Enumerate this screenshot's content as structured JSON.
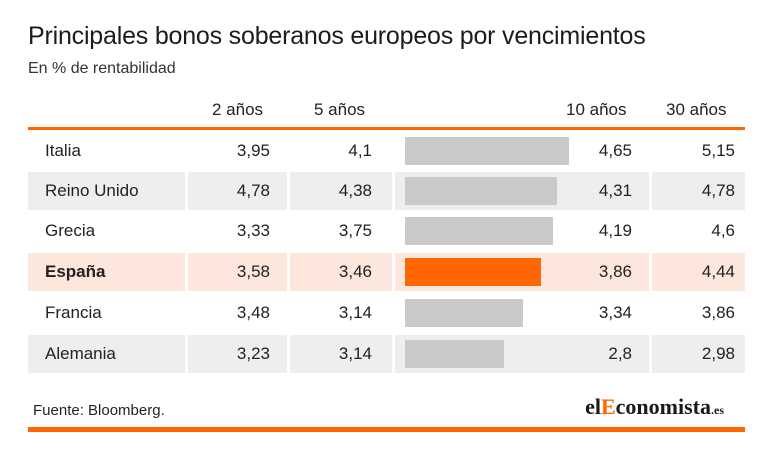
{
  "title": "Principales bonos soberanos europeos por vencimientos",
  "subtitle": "En % de rentabilidad",
  "source": "Fuente: Bloomberg.",
  "logo": {
    "part1": "el",
    "part2": "E",
    "part3": "conomista",
    "part4": ".es"
  },
  "colors": {
    "accent": "#ff6600",
    "bar": "#c9c9c9",
    "highlight_row": "#fde6dc",
    "cell": "#eeeeee"
  },
  "chart_data": {
    "type": "table",
    "columns": [
      "2 años",
      "5 años",
      "10 años",
      "30 años"
    ],
    "bar_column": "10 años",
    "highlight": "España",
    "rows": [
      {
        "country": "Italia",
        "y2": "3,95",
        "y5": "4,1",
        "y10": "4,65",
        "y30": "5,15",
        "v10": 4.65
      },
      {
        "country": "Reino Unido",
        "y2": "4,78",
        "y5": "4,38",
        "y10": "4,31",
        "y30": "4,78",
        "v10": 4.31
      },
      {
        "country": "Grecia",
        "y2": "3,33",
        "y5": "3,75",
        "y10": "4,19",
        "y30": "4,6",
        "v10": 4.19
      },
      {
        "country": "España",
        "y2": "3,58",
        "y5": "3,46",
        "y10": "3,86",
        "y30": "4,44",
        "v10": 3.86
      },
      {
        "country": "Francia",
        "y2": "3,48",
        "y5": "3,14",
        "y10": "3,34",
        "y30": "3,86",
        "v10": 3.34
      },
      {
        "country": "Alemania",
        "y2": "3,23",
        "y5": "3,14",
        "y10": "2,8",
        "y30": "2,98",
        "v10": 2.8
      }
    ]
  }
}
